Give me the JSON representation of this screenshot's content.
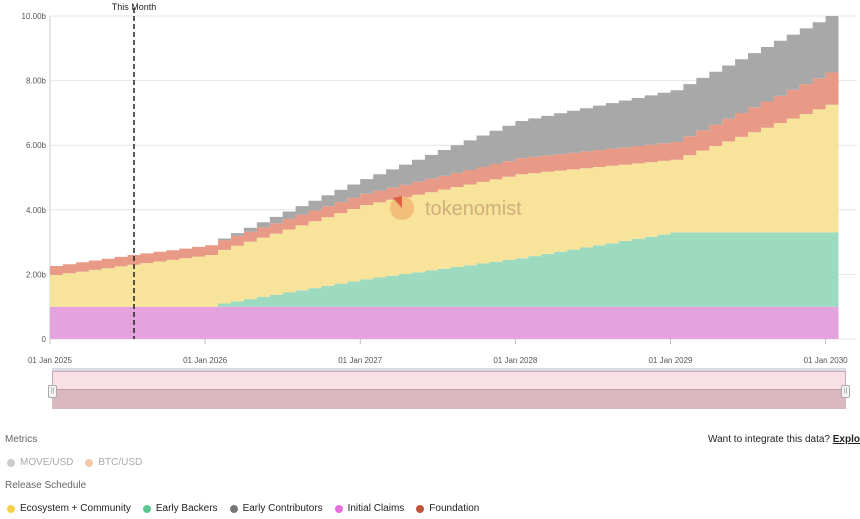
{
  "chart_data": {
    "type": "area",
    "stacked": true,
    "x_start": "2025-01",
    "x_end": "2030-01",
    "x_tick_labels": [
      "01 Jan 2025",
      "01 Jan 2026",
      "01 Jan 2027",
      "01 Jan 2028",
      "01 Jan 2029",
      "01 Jan 2030"
    ],
    "y_tick_labels": [
      "0",
      "2.00b",
      "4.00b",
      "6.00b",
      "8.00b",
      "10.00b"
    ],
    "ylim": [
      0,
      10
    ],
    "y_unit": "b",
    "grid": true,
    "marker": {
      "label": "This Month",
      "date": "2025-07"
    },
    "watermark": "tokenomist",
    "series": [
      {
        "name": "Initial Claims",
        "color": "#e4a3dd",
        "points": [
          [
            "2025-01",
            1.0
          ],
          [
            "2030-01",
            1.0
          ]
        ]
      },
      {
        "name": "Early Backers",
        "color": "#9ddbc0",
        "points": [
          [
            "2025-01",
            0
          ],
          [
            "2026-01",
            0
          ],
          [
            "2026-02",
            0.1
          ],
          [
            "2027-01",
            0.85
          ],
          [
            "2028-01",
            1.5
          ],
          [
            "2029-01",
            2.3
          ],
          [
            "2029-02",
            2.3
          ],
          [
            "2030-01",
            2.3
          ]
        ]
      },
      {
        "name": "Ecosystem + Community",
        "color": "#f7e39a",
        "points": [
          [
            "2025-01",
            0.98
          ],
          [
            "2025-07",
            1.3
          ],
          [
            "2026-01",
            1.6
          ],
          [
            "2027-01",
            2.3
          ],
          [
            "2028-01",
            2.6
          ],
          [
            "2029-01",
            2.25
          ],
          [
            "2030-01",
            3.95
          ]
        ]
      },
      {
        "name": "Foundation",
        "color": "#e89a86",
        "points": [
          [
            "2025-01",
            0.28
          ],
          [
            "2025-07",
            0.3
          ],
          [
            "2026-01",
            0.3
          ],
          [
            "2027-01",
            0.35
          ],
          [
            "2028-01",
            0.5
          ],
          [
            "2029-01",
            0.55
          ],
          [
            "2030-01",
            1.0
          ]
        ]
      },
      {
        "name": "Early Contributors",
        "color": "#a8a8a8",
        "points": [
          [
            "2025-01",
            0
          ],
          [
            "2026-01",
            0
          ],
          [
            "2026-02",
            0.05
          ],
          [
            "2027-01",
            0.45
          ],
          [
            "2028-01",
            1.15
          ],
          [
            "2029-01",
            1.6
          ],
          [
            "2030-01",
            1.75
          ]
        ]
      }
    ]
  },
  "metrics": {
    "title": "Metrics",
    "items": [
      {
        "label": "MOVE/USD",
        "color": "#cccccc"
      },
      {
        "label": "BTC/USD",
        "color": "#f3c9a9"
      }
    ]
  },
  "release_schedule": {
    "title": "Release Schedule",
    "items": [
      {
        "label": "Ecosystem + Community",
        "color": "#f4d04f"
      },
      {
        "label": "Early Backers",
        "color": "#5fc493"
      },
      {
        "label": "Early Contributors",
        "color": "#777777"
      },
      {
        "label": "Initial Claims",
        "color": "#e46fdc"
      },
      {
        "label": "Foundation",
        "color": "#c0543a"
      }
    ]
  },
  "integrate": {
    "text": "Want to integrate this data?",
    "link": "Explo"
  }
}
